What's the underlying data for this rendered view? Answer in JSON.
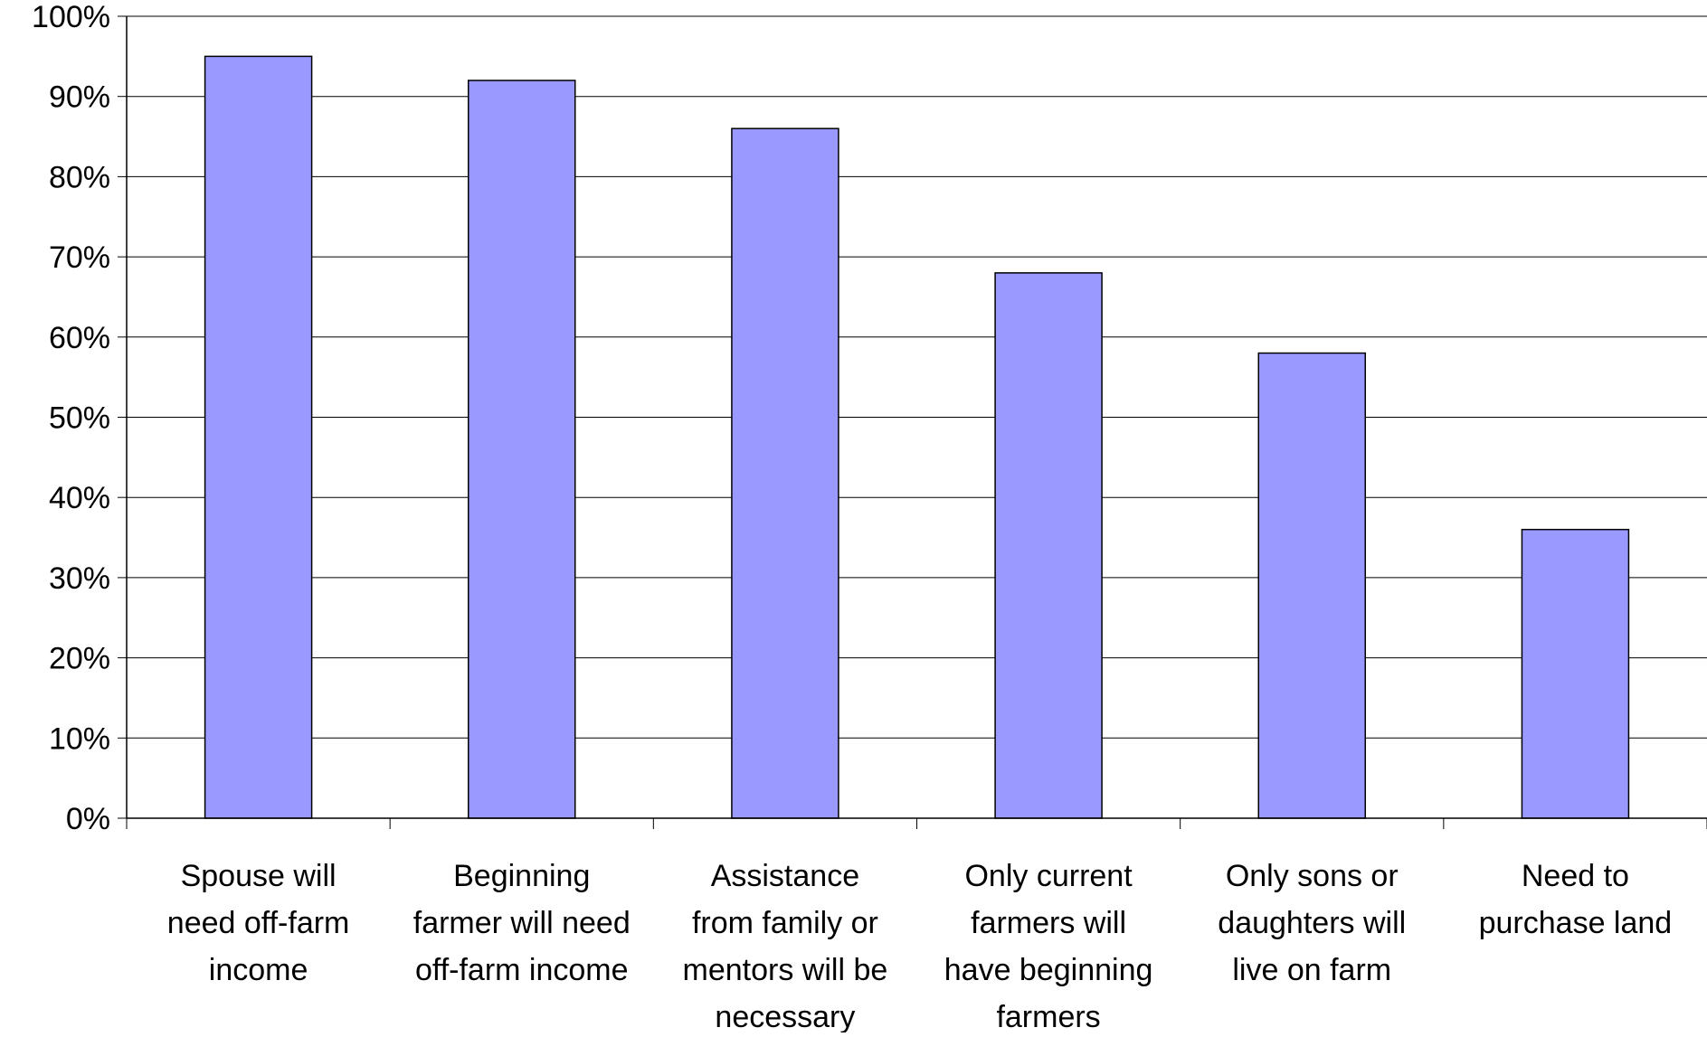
{
  "chart_data": {
    "type": "bar",
    "title": "",
    "xlabel": "",
    "ylabel": "",
    "ylim": [
      0,
      100
    ],
    "ytick_step": 10,
    "ytick_format": "percent",
    "grid": true,
    "legend": "none",
    "categories": [
      [
        "Spouse will",
        "need off-farm",
        "income"
      ],
      [
        "Beginning",
        "farmer will need",
        "off-farm income"
      ],
      [
        "Assistance",
        "from family or",
        "mentors will be",
        "necessary"
      ],
      [
        "Only current",
        "farmers will",
        "have beginning",
        "farmers"
      ],
      [
        "Only sons or",
        "daughters will",
        "live on farm"
      ],
      [
        "Need to",
        "purchase land"
      ]
    ],
    "values": [
      95,
      92,
      86,
      68,
      58,
      36
    ],
    "colors": {
      "bar_fill": "#9999ff",
      "bar_stroke": "#000000",
      "grid": "#000000",
      "axis": "#000000"
    }
  }
}
